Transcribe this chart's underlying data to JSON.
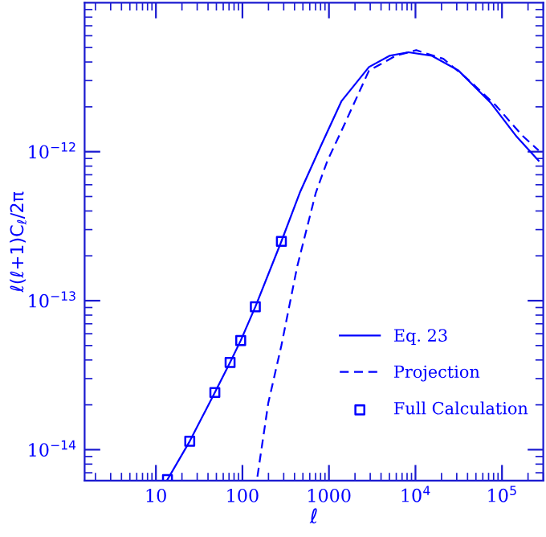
{
  "chart_data": {
    "type": "line",
    "xlabel": "ℓ",
    "ylabel": "ℓ(ℓ+1)C$_{ℓ}$/2π",
    "log": "xy",
    "xlim": [
      1.5,
      300000
    ],
    "ylim": [
      6.2e-15,
      1e-11
    ],
    "xticks": [
      10,
      100,
      1000,
      {
        "value": 10000,
        "label": "10$^{4}$"
      },
      {
        "value": 100000,
        "label": "10$^{5}$"
      }
    ],
    "yticks": [
      {
        "value": 1e-14,
        "label": "10$^{−14}$"
      },
      {
        "value": 1e-13,
        "label": "10$^{−13}$"
      },
      {
        "value": 1e-12,
        "label": "10$^{−12}$"
      }
    ],
    "grid": false,
    "legend": "bottom right",
    "series": [
      {
        "name": "Eq. 23",
        "line_style": "solid",
        "color": "#0000ff",
        "x": [
          13.6,
          24.6,
          48,
          72,
          95.5,
          141,
          282,
          460,
          810,
          1400,
          2900,
          5000,
          8300,
          15500,
          31500,
          73500,
          148000,
          265000
        ],
        "values": [
          6.3e-15,
          1.14e-14,
          2.42e-14,
          3.85e-14,
          5.4e-14,
          9.1e-14,
          2.5e-13,
          5.3e-13,
          1.1e-12,
          2.19e-12,
          3.7e-12,
          4.4e-12,
          4.65e-12,
          4.4e-12,
          3.5e-12,
          2.14e-12,
          1.26e-12,
          8.7e-13
        ]
      },
      {
        "name": "Projection",
        "line_style": "dashed",
        "color": "#0000ff",
        "x": [
          149,
          199,
          282,
          430,
          705,
          960,
          1420,
          2900,
          5900,
          10200,
          21000,
          42000,
          85000,
          170000,
          265000
        ],
        "values": [
          6.6e-15,
          2.06e-14,
          5e-14,
          1.7e-13,
          5.3e-13,
          8.7e-13,
          1.41e-12,
          3.5e-12,
          4.4e-12,
          4.8e-12,
          4.2e-12,
          3e-12,
          2.04e-12,
          1.29e-12,
          1.02e-12
        ]
      },
      {
        "name": "Full Calculation",
        "type": "scatter",
        "marker": "square",
        "color": "#0000ff",
        "x": [
          13.6,
          24.6,
          48,
          72,
          95.5,
          141,
          282
        ],
        "values": [
          6.3e-15,
          1.14e-14,
          2.42e-14,
          3.85e-14,
          5.4e-14,
          9.1e-14,
          2.5e-13
        ]
      }
    ]
  }
}
